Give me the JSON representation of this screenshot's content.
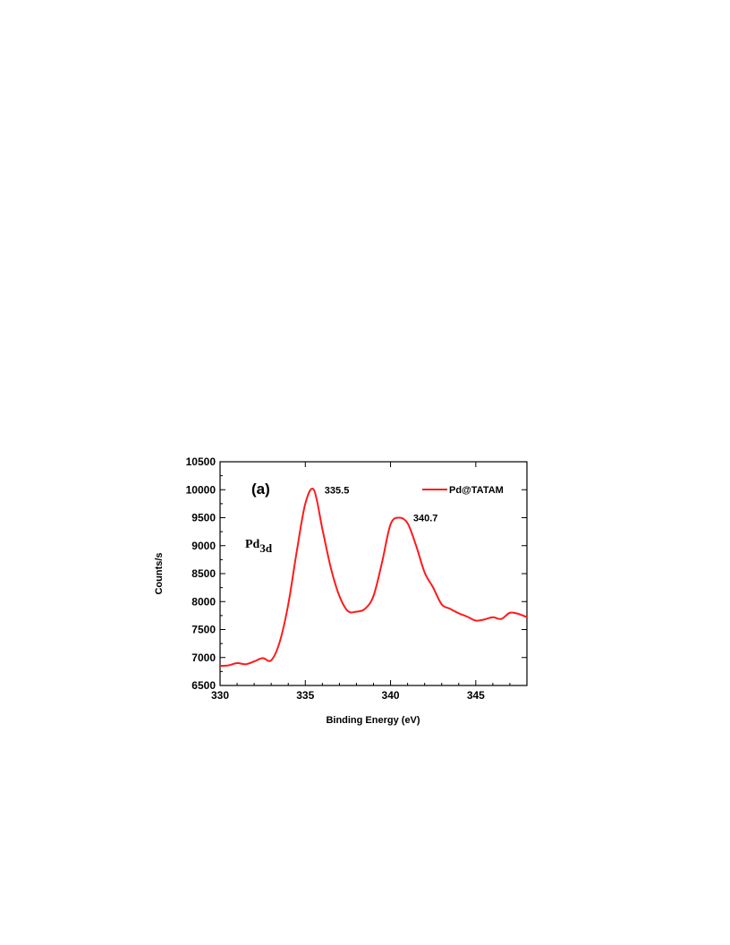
{
  "chart_data": {
    "type": "line",
    "panel_label": "(a)",
    "element_label": {
      "main": "Pd",
      "subscript": "3d"
    },
    "xlabel": "Binding Energy (eV)",
    "ylabel": "Counts/s",
    "xlim": [
      330,
      348
    ],
    "ylim": [
      6500,
      10500
    ],
    "x_ticks": [
      330,
      335,
      340,
      345
    ],
    "y_ticks": [
      6500,
      7000,
      7500,
      8000,
      8500,
      9000,
      9500,
      10000,
      10500
    ],
    "grid": false,
    "legend_position": "top-right",
    "series": [
      {
        "name": "Pd@TATAM",
        "color": "#ff1a1a",
        "x": [
          330,
          330.5,
          331,
          331.5,
          332,
          332.5,
          333,
          333.5,
          334,
          334.5,
          335,
          335.5,
          336,
          336.5,
          337,
          337.5,
          338,
          338.5,
          339,
          339.5,
          340,
          340.5,
          341,
          341.5,
          342,
          342.5,
          343,
          343.5,
          344,
          344.5,
          345,
          345.5,
          346,
          346.5,
          347,
          347.5,
          348
        ],
        "y": [
          6850,
          6860,
          6900,
          6880,
          6930,
          6990,
          6950,
          7280,
          7950,
          8900,
          9750,
          10000,
          9300,
          8600,
          8100,
          7830,
          7820,
          7870,
          8100,
          8700,
          9380,
          9500,
          9400,
          9000,
          8520,
          8250,
          7950,
          7870,
          7790,
          7730,
          7660,
          7680,
          7720,
          7690,
          7800,
          7780,
          7720
        ]
      }
    ],
    "annotations": [
      {
        "text": "335.5",
        "x": 335.5,
        "y": 10000
      },
      {
        "text": "340.7",
        "x": 340.7,
        "y": 9500
      }
    ]
  }
}
